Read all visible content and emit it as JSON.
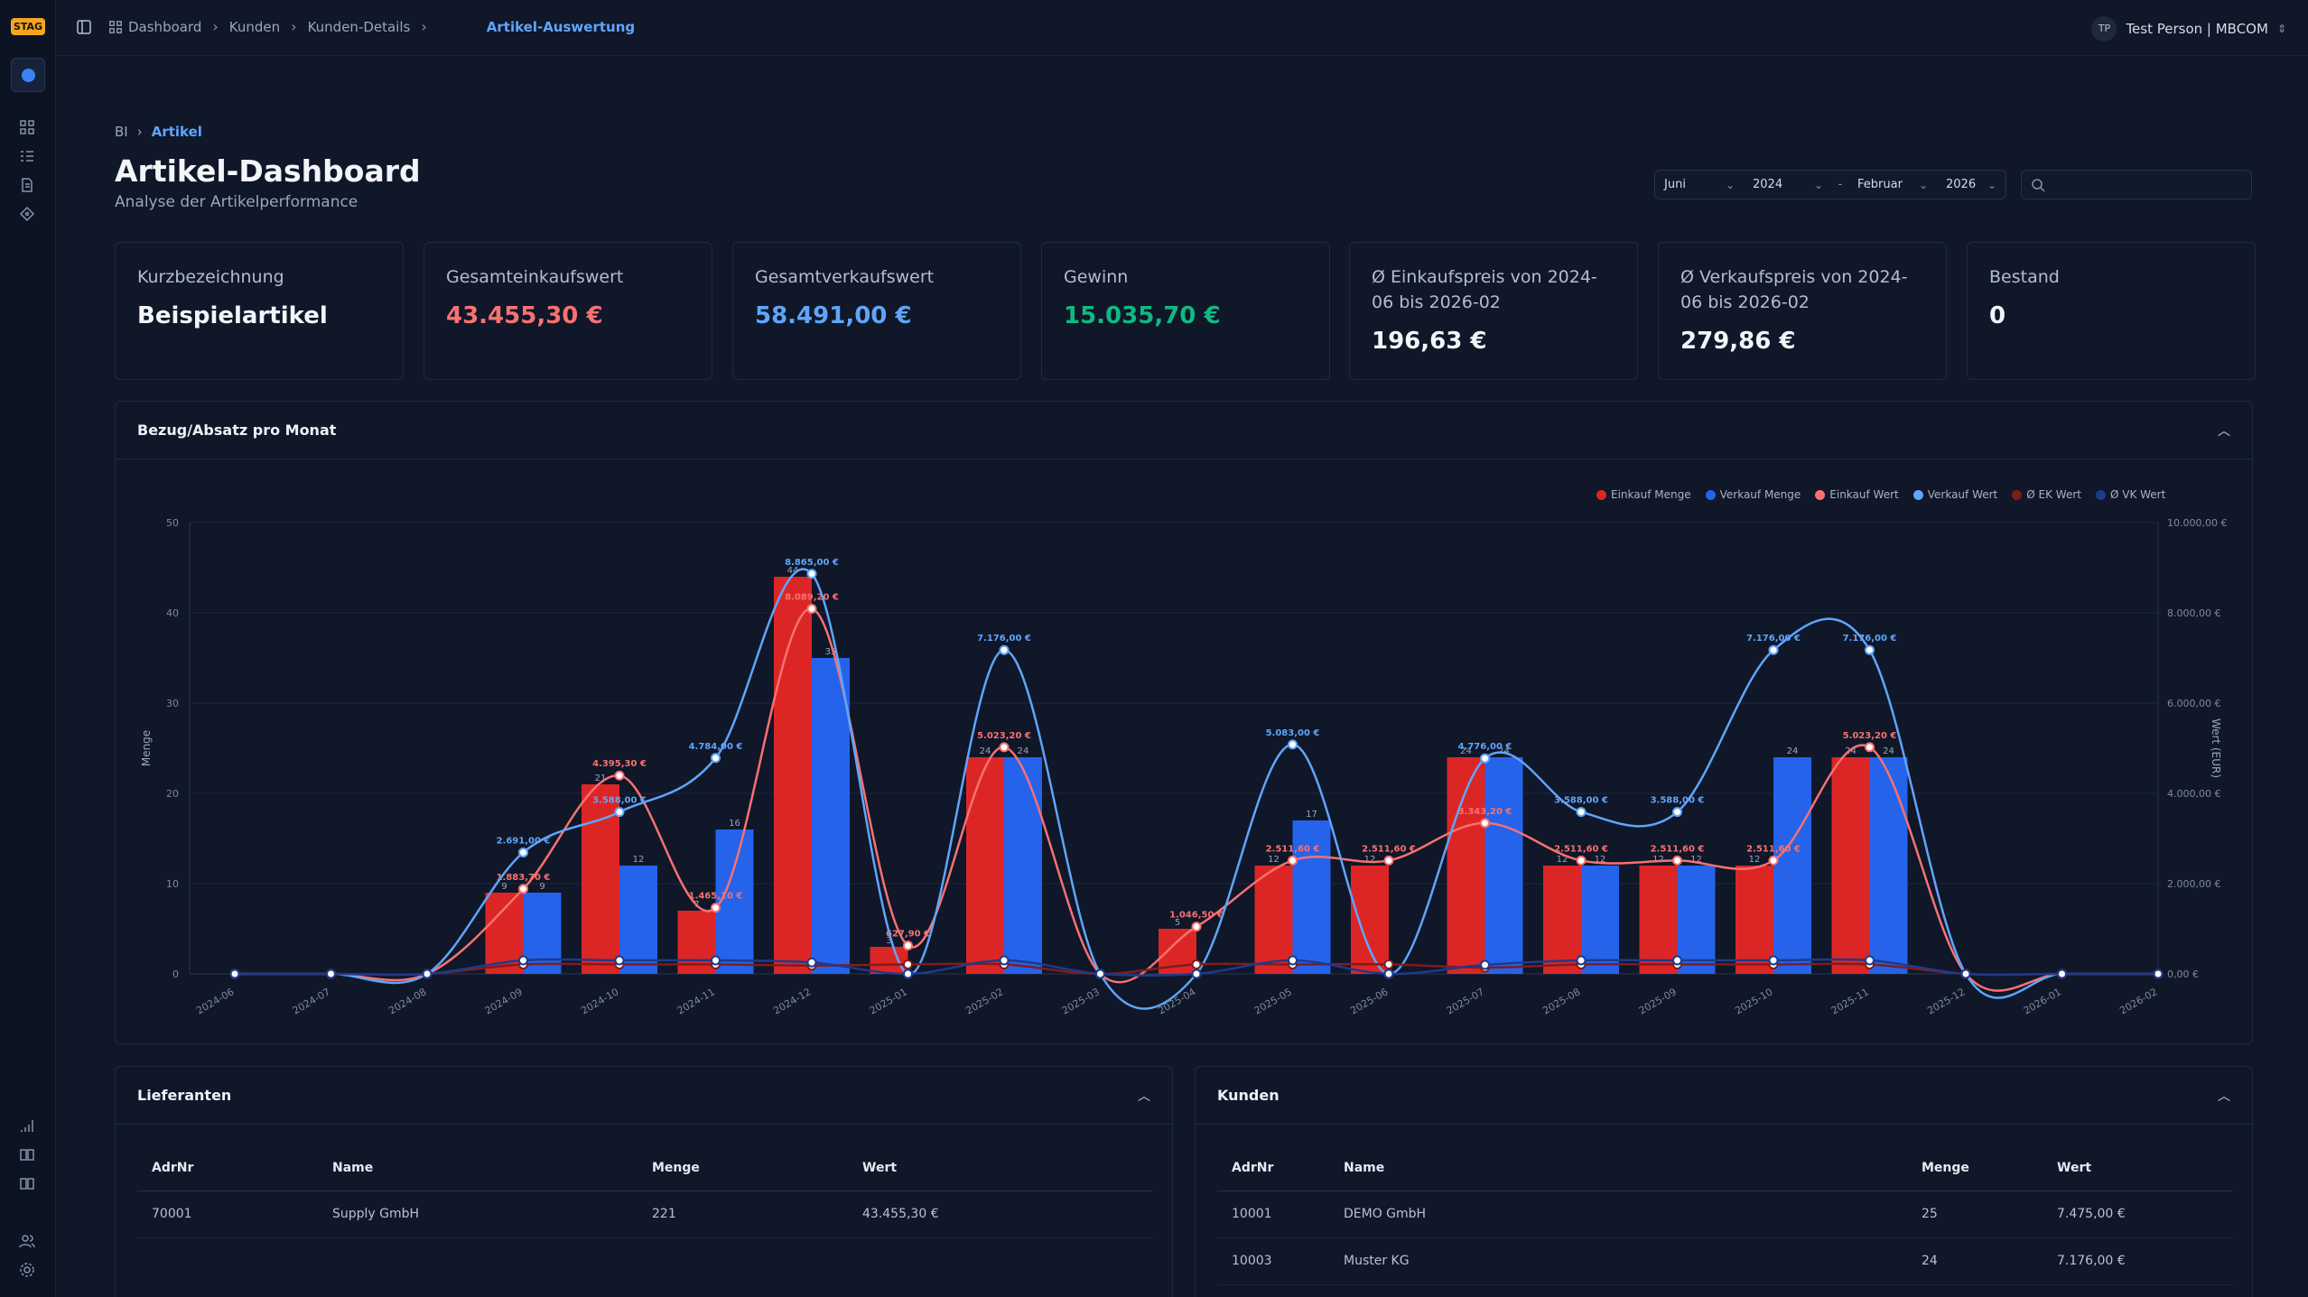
{
  "env_badge": "STAG",
  "topbar": {
    "breadcrumbs": [
      "Dashboard",
      "Kunden",
      "Kunden-Details"
    ],
    "current": "Artikel-Auswertung",
    "user_initials": "TP",
    "user_name": "Test Person | MBCOM"
  },
  "page": {
    "crumb_root": "BI",
    "crumb_current": "Artikel",
    "title": "Artikel-Dashboard",
    "subtitle": "Analyse der Artikelperformance"
  },
  "filters": {
    "from_month": "Juni",
    "from_year": "2024",
    "separator": "-",
    "to_month": "Februar",
    "to_year": "2026",
    "search_placeholder": ""
  },
  "kpis": [
    {
      "label": "Kurzbezeichnung",
      "value": "Beispielartikel",
      "color": "#f3f5f9"
    },
    {
      "label": "Gesamteinkaufswert",
      "value": "43.455,30 €",
      "color": "#f87171"
    },
    {
      "label": "Gesamtverkaufswert",
      "value": "58.491,00 €",
      "color": "#60a5fa"
    },
    {
      "label": "Gewinn",
      "value": "15.035,70 €",
      "color": "#10b981"
    },
    {
      "label": "Ø Einkaufspreis von 2024-06 bis 2026-02",
      "value": "196,63 €",
      "color": "#f3f5f9"
    },
    {
      "label": "Ø Verkaufspreis von 2024-06 bis 2026-02",
      "value": "279,86 €",
      "color": "#f3f5f9"
    },
    {
      "label": "Bestand",
      "value": "0",
      "color": "#f3f5f9"
    }
  ],
  "chart_panel": {
    "title": "Bezug/Absatz pro Monat"
  },
  "chart_data": {
    "type": "bar",
    "title": "",
    "xlabel": "",
    "ylabel": "Menge",
    "y2label": "Wert (EUR)",
    "ylim": [
      0,
      50
    ],
    "y2lim": [
      0,
      10000
    ],
    "yticks": [
      "0",
      "10",
      "20",
      "30",
      "40",
      "50"
    ],
    "y2ticks": [
      "0,00 €",
      "2.000,00 €",
      "4.000,00 €",
      "6.000,00 €",
      "8.000,00 €",
      "10.000,00 €"
    ],
    "categories": [
      "2024-06",
      "2024-07",
      "2024-08",
      "2024-09",
      "2024-10",
      "2024-11",
      "2024-12",
      "2025-01",
      "2025-02",
      "2025-03",
      "2025-04",
      "2025-05",
      "2025-06",
      "2025-07",
      "2025-08",
      "2025-09",
      "2025-10",
      "2025-11",
      "2025-12",
      "2026-01",
      "2026-02"
    ],
    "legend": [
      "Einkauf Menge",
      "Verkauf Menge",
      "Einkauf Wert",
      "Verkauf Wert",
      "Ø EK Wert",
      "Ø VK Wert"
    ],
    "colors": {
      "ek_menge": "#dc2626",
      "vk_menge": "#2563eb",
      "ek_wert": "#f87171",
      "vk_wert": "#60a5fa",
      "ek_avg": "#7f1d1d",
      "vk_avg": "#1e3a8a"
    },
    "series": [
      {
        "name": "Einkauf Menge",
        "kind": "bar",
        "values": [
          0,
          0,
          0,
          9,
          21,
          7,
          44,
          3,
          24,
          0,
          5,
          12,
          12,
          24,
          12,
          12,
          12,
          24,
          0,
          0,
          0
        ]
      },
      {
        "name": "Verkauf Menge",
        "kind": "bar",
        "values": [
          0,
          0,
          0,
          9,
          12,
          16,
          35,
          0,
          24,
          0,
          0,
          17,
          0,
          24,
          12,
          12,
          24,
          24,
          0,
          0,
          0
        ]
      },
      {
        "name": "Einkauf Wert",
        "kind": "line",
        "values": [
          0,
          0,
          0,
          1883.7,
          4395.3,
          1465.1,
          8089.2,
          627.9,
          5023.2,
          0,
          1046.5,
          2511.6,
          2511.6,
          3343.2,
          2511.6,
          2511.6,
          2511.6,
          5023.2,
          0,
          0,
          0
        ],
        "labels": [
          "",
          "",
          "",
          "1.883,70 €",
          "4.395,30 €",
          "1.465,10 €",
          "8.089,20 €",
          "627,90 €",
          "5.023,20 €",
          "",
          "1.046,50 €",
          "2.511,60 €",
          "2.511,60 €",
          "3.343,20 €",
          "2.511,60 €",
          "2.511,60 €",
          "2.511,60 €",
          "5.023,20 €",
          "",
          "",
          ""
        ]
      },
      {
        "name": "Verkauf Wert",
        "kind": "line",
        "values": [
          0,
          0,
          0,
          2691,
          3588,
          4784,
          8865,
          0,
          7176,
          0,
          0,
          5083,
          0,
          4776,
          3588,
          3588,
          7176,
          7176,
          0,
          0,
          0
        ],
        "labels": [
          "",
          "",
          "",
          "2.691,00 €",
          "3.588,00 €",
          "4.784,00 €",
          "8.865,00 €",
          "",
          "7.176,00 €",
          "",
          "",
          "5.083,00 €",
          "",
          "4.776,00 €",
          "3.588,00 €",
          "3.588,00 €",
          "7.176,00 €",
          "7.176,00 €",
          "",
          "",
          ""
        ]
      },
      {
        "name": "Ø EK Wert",
        "kind": "line",
        "values": [
          0,
          0,
          0,
          209.3,
          209.3,
          209.3,
          183.85,
          209.3,
          209.3,
          0,
          209.3,
          209.3,
          209.3,
          139.3,
          209.3,
          209.3,
          209.3,
          209.3,
          0,
          0,
          0
        ]
      },
      {
        "name": "Ø VK Wert",
        "kind": "line",
        "values": [
          0,
          0,
          0,
          299,
          299,
          299,
          253.29,
          0,
          299,
          0,
          0,
          299,
          0,
          199,
          299,
          299,
          299,
          299,
          0,
          0,
          0
        ]
      }
    ]
  },
  "lieferanten": {
    "title": "Lieferanten",
    "columns": [
      "AdrNr",
      "Name",
      "Menge",
      "Wert"
    ],
    "rows": [
      [
        "70001",
        "Supply GmbH",
        "221",
        "43.455,30 €"
      ]
    ]
  },
  "kunden": {
    "title": "Kunden",
    "columns": [
      "AdrNr",
      "Name",
      "Menge",
      "Wert"
    ],
    "rows": [
      [
        "10001",
        "DEMO GmbH",
        "25",
        "7.475,00 €"
      ],
      [
        "10003",
        "Muster KG",
        "24",
        "7.176,00 €"
      ]
    ]
  }
}
